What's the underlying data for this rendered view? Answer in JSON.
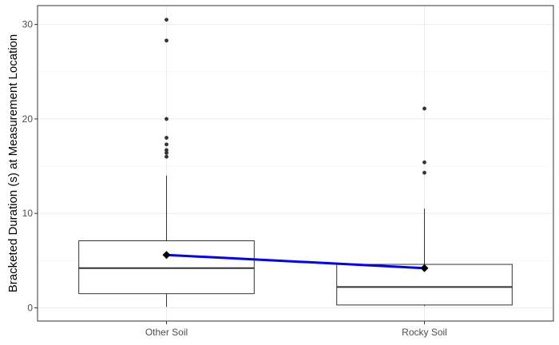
{
  "chart_data": {
    "type": "box",
    "title": "",
    "xlabel": "",
    "ylabel": "Bracketed Duration (s) at Measurement Location",
    "ylim": [
      -1.4,
      32
    ],
    "yticks": [
      0,
      10,
      20,
      30
    ],
    "grid": true,
    "categories": [
      "Other Soil",
      "Rocky Soil"
    ],
    "boxes": [
      {
        "category": "Other Soil",
        "whisker_low": 0.1,
        "q1": 1.5,
        "median": 4.2,
        "q3": 7.1,
        "whisker_high": 14.0,
        "mean": 5.6,
        "outliers": [
          16.0,
          16.4,
          16.7,
          17.3,
          18.0,
          20.0,
          28.3,
          30.5
        ]
      },
      {
        "category": "Rocky Soil",
        "whisker_low": 0.2,
        "q1": 0.3,
        "median": 2.2,
        "q3": 4.6,
        "whisker_high": 10.5,
        "mean": 4.2,
        "outliers": [
          14.3,
          15.4,
          21.1
        ]
      }
    ],
    "mean_line_color": "#0000ff",
    "mean_marker_color": "#000000"
  }
}
